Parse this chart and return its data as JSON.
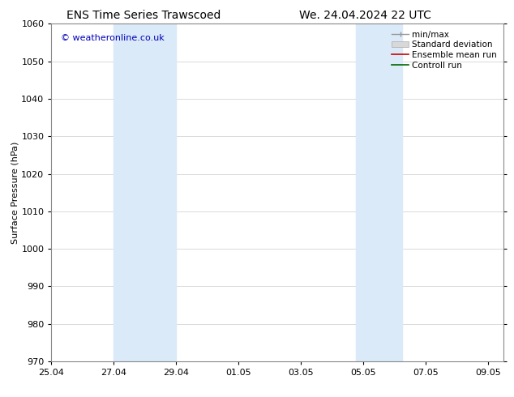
{
  "title_left": "ENS Time Series Trawscoed",
  "title_right": "We. 24.04.2024 22 UTC",
  "ylabel": "Surface Pressure (hPa)",
  "ylim": [
    970,
    1060
  ],
  "yticks": [
    970,
    980,
    990,
    1000,
    1010,
    1020,
    1030,
    1040,
    1050,
    1060
  ],
  "background_color": "#ffffff",
  "plot_bg_color": "#ffffff",
  "watermark_text": "© weatheronline.co.uk",
  "watermark_color": "#0000bb",
  "shaded_regions": [
    {
      "x_start_days": 2.0,
      "x_end_days": 4.0,
      "color": "#daeaf8"
    },
    {
      "x_start_days": 9.75,
      "x_end_days": 11.25,
      "color": "#daeaf8"
    }
  ],
  "xtick_labels": [
    "25.04",
    "27.04",
    "29.04",
    "01.05",
    "03.05",
    "05.05",
    "07.05",
    "09.05"
  ],
  "xtick_positions_days": [
    0,
    2,
    4,
    6,
    8,
    10,
    12,
    14
  ],
  "xlim": [
    0,
    14.5
  ],
  "title_fontsize": 10,
  "axis_label_fontsize": 8,
  "tick_fontsize": 8,
  "legend_fontsize": 7.5,
  "watermark_fontsize": 8,
  "grid_color": "#cccccc",
  "spine_color": "#888888"
}
